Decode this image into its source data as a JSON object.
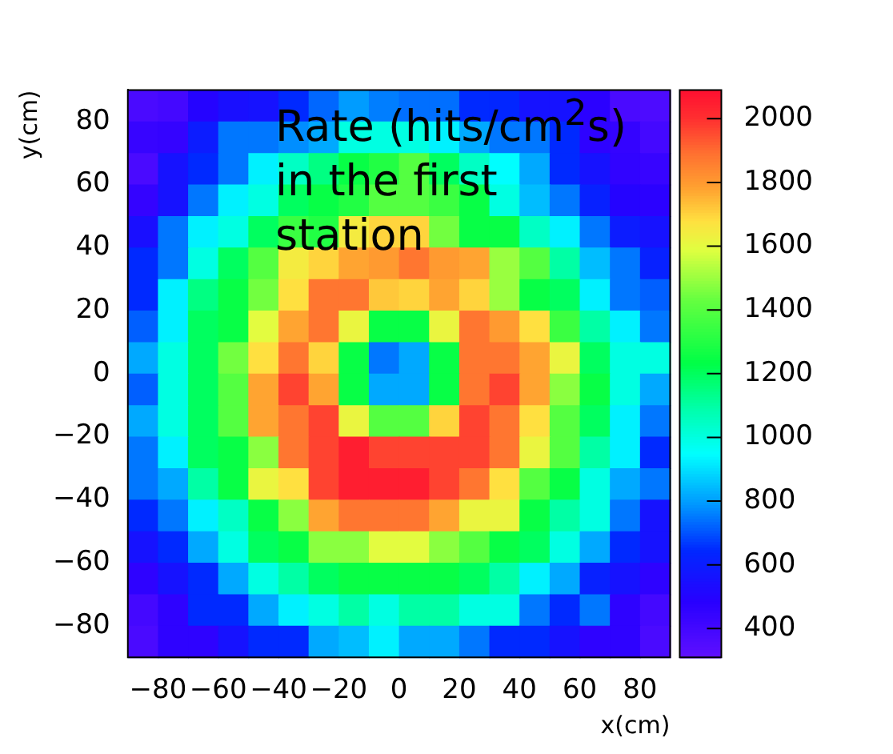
{
  "chart_data": {
    "type": "heatmap",
    "xlabel": "x(cm)",
    "ylabel": "y(cm)",
    "annotations": [
      "Rate (hits/cm$^{2}$s) in the first station"
    ],
    "x": [
      -85,
      -75,
      -65,
      -55,
      -45,
      -35,
      -25,
      -15,
      -5,
      5,
      15,
      25,
      35,
      45,
      55,
      65,
      75,
      85
    ],
    "y": [
      85,
      75,
      65,
      55,
      45,
      35,
      25,
      15,
      5,
      -5,
      -15,
      -25,
      -35,
      -45,
      -55,
      -65,
      -75,
      -85
    ],
    "xlim": [
      -90,
      90
    ],
    "xticks": [
      -80,
      -60,
      -40,
      -20,
      0,
      20,
      40,
      60,
      80
    ],
    "ylim": [
      -90,
      90
    ],
    "yticks": [
      -80,
      -60,
      -40,
      -20,
      0,
      20,
      40,
      60,
      80
    ],
    "clim": [
      310,
      2090
    ],
    "cticks": [
      400,
      600,
      800,
      1000,
      1200,
      1400,
      1600,
      1800,
      2000
    ],
    "cells": [
      [
        380,
        400,
        500,
        550,
        560,
        650,
        730,
        800,
        760,
        740,
        740,
        650,
        640,
        560,
        560,
        480,
        380,
        370
      ],
      [
        440,
        450,
        600,
        750,
        750,
        780,
        820,
        1000,
        1000,
        1000,
        930,
        820,
        750,
        750,
        650,
        470,
        450,
        400
      ],
      [
        380,
        560,
        650,
        750,
        930,
        1050,
        1150,
        1250,
        1300,
        1400,
        1200,
        1050,
        950,
        820,
        650,
        560,
        460,
        440
      ],
      [
        450,
        560,
        750,
        930,
        1000,
        1200,
        1250,
        1300,
        1400,
        1400,
        1350,
        1250,
        1000,
        850,
        750,
        620,
        500,
        480
      ],
      [
        550,
        750,
        930,
        1000,
        1200,
        1350,
        1300,
        1650,
        1700,
        1700,
        1450,
        1250,
        1250,
        1050,
        930,
        750,
        600,
        560
      ],
      [
        650,
        750,
        1000,
        1200,
        1400,
        1650,
        1700,
        1780,
        1800,
        1880,
        1800,
        1780,
        1500,
        1400,
        1100,
        850,
        750,
        620
      ],
      [
        650,
        930,
        1150,
        1250,
        1450,
        1680,
        1880,
        1880,
        1720,
        1700,
        1780,
        1700,
        1500,
        1250,
        1200,
        930,
        750,
        720
      ],
      [
        720,
        930,
        1200,
        1250,
        1600,
        1780,
        1880,
        1620,
        1250,
        1250,
        1620,
        1880,
        1800,
        1680,
        1350,
        1100,
        930,
        750
      ],
      [
        820,
        1000,
        1200,
        1450,
        1680,
        1880,
        1700,
        1250,
        750,
        820,
        1250,
        1880,
        1880,
        1780,
        1620,
        1200,
        1000,
        1000
      ],
      [
        720,
        1000,
        1200,
        1400,
        1780,
        1970,
        1780,
        1250,
        820,
        820,
        1250,
        1880,
        1970,
        1780,
        1480,
        1250,
        1000,
        820
      ],
      [
        820,
        1000,
        1200,
        1400,
        1780,
        1880,
        1970,
        1620,
        1400,
        1400,
        1700,
        1970,
        1880,
        1680,
        1400,
        1200,
        930,
        750
      ],
      [
        750,
        930,
        1200,
        1250,
        1480,
        1880,
        1970,
        2050,
        1970,
        1970,
        1970,
        1970,
        1880,
        1620,
        1400,
        1100,
        930,
        650
      ],
      [
        750,
        820,
        1100,
        1250,
        1620,
        1680,
        1970,
        2050,
        2050,
        2050,
        1970,
        1880,
        1680,
        1400,
        1250,
        1000,
        820,
        750
      ],
      [
        650,
        750,
        930,
        1050,
        1250,
        1480,
        1780,
        1880,
        1880,
        1880,
        1780,
        1620,
        1620,
        1250,
        1100,
        1000,
        750,
        560
      ],
      [
        560,
        650,
        820,
        1000,
        1200,
        1250,
        1480,
        1480,
        1600,
        1600,
        1480,
        1400,
        1250,
        1200,
        1000,
        820,
        650,
        560
      ],
      [
        470,
        560,
        650,
        820,
        1000,
        1100,
        1200,
        1250,
        1250,
        1250,
        1250,
        1200,
        1100,
        930,
        820,
        620,
        560,
        470
      ],
      [
        400,
        470,
        650,
        650,
        820,
        930,
        1000,
        1100,
        1000,
        1100,
        1100,
        1000,
        1000,
        750,
        650,
        750,
        470,
        400
      ],
      [
        380,
        470,
        470,
        560,
        650,
        650,
        820,
        850,
        930,
        820,
        820,
        750,
        650,
        650,
        560,
        470,
        470,
        380
      ]
    ]
  }
}
